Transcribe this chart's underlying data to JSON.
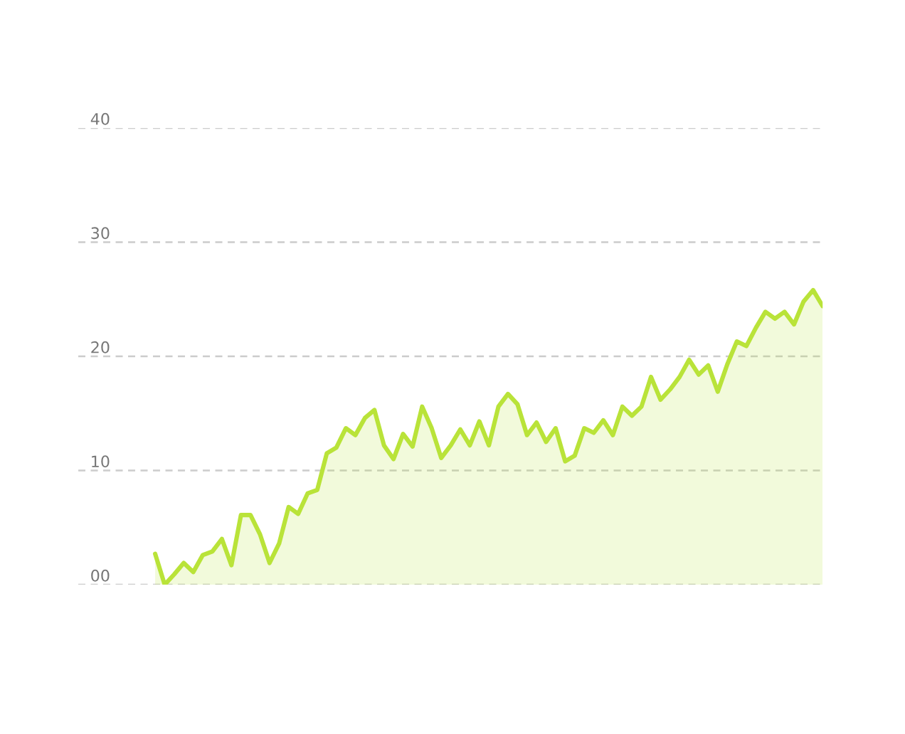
{
  "chart_data": {
    "type": "area",
    "categories": [
      null,
      null,
      null,
      null,
      null,
      null,
      null,
      null,
      null,
      null,
      null,
      null,
      null,
      null,
      null,
      null,
      null,
      null,
      null,
      null,
      null,
      null,
      null,
      null,
      null,
      null,
      null,
      null,
      null,
      null,
      null,
      null,
      null,
      null,
      null,
      null,
      null,
      null,
      null,
      null,
      null,
      null,
      null,
      null,
      null,
      null,
      null,
      null,
      null,
      null,
      null,
      null,
      null,
      null,
      null,
      null,
      null,
      null,
      null,
      null,
      null,
      null,
      null,
      null,
      null,
      null,
      null,
      null,
      null,
      null,
      null
    ],
    "series": [
      {
        "color": "#b9e339",
        "values": [
          2.7,
          0,
          0.9,
          1.9,
          1.1,
          2.6,
          2.9,
          4.0,
          1.7,
          6.1,
          6.1,
          4.4,
          1.9,
          3.6,
          6.8,
          6.2,
          8.0,
          8.3,
          11.5,
          12.0,
          13.7,
          13.1,
          14.6,
          15.3,
          12.2,
          11.0,
          13.2,
          12.1,
          15.6,
          13.7,
          11.1,
          12.2,
          13.6,
          12.2,
          14.3,
          12.2,
          15.6,
          16.7,
          15.8,
          13.1,
          14.2,
          12.5,
          13.7,
          10.8,
          11.3,
          13.7,
          13.3,
          14.4,
          13.1,
          15.6,
          14.8,
          15.6,
          18.2,
          16.2,
          17.1,
          18.2,
          19.7,
          18.4,
          19.2,
          16.9,
          19.3,
          21.3,
          20.9,
          22.5,
          23.9,
          23.3,
          23.9,
          22.8,
          24.8,
          25.8,
          24.4
        ]
      }
    ],
    "ylim": [
      0,
      40
    ],
    "yticks": [
      {
        "value": 0,
        "label": "00"
      },
      10,
      20,
      30,
      40
    ],
    "grid": "y",
    "line_style": "solid",
    "marker": "none"
  }
}
